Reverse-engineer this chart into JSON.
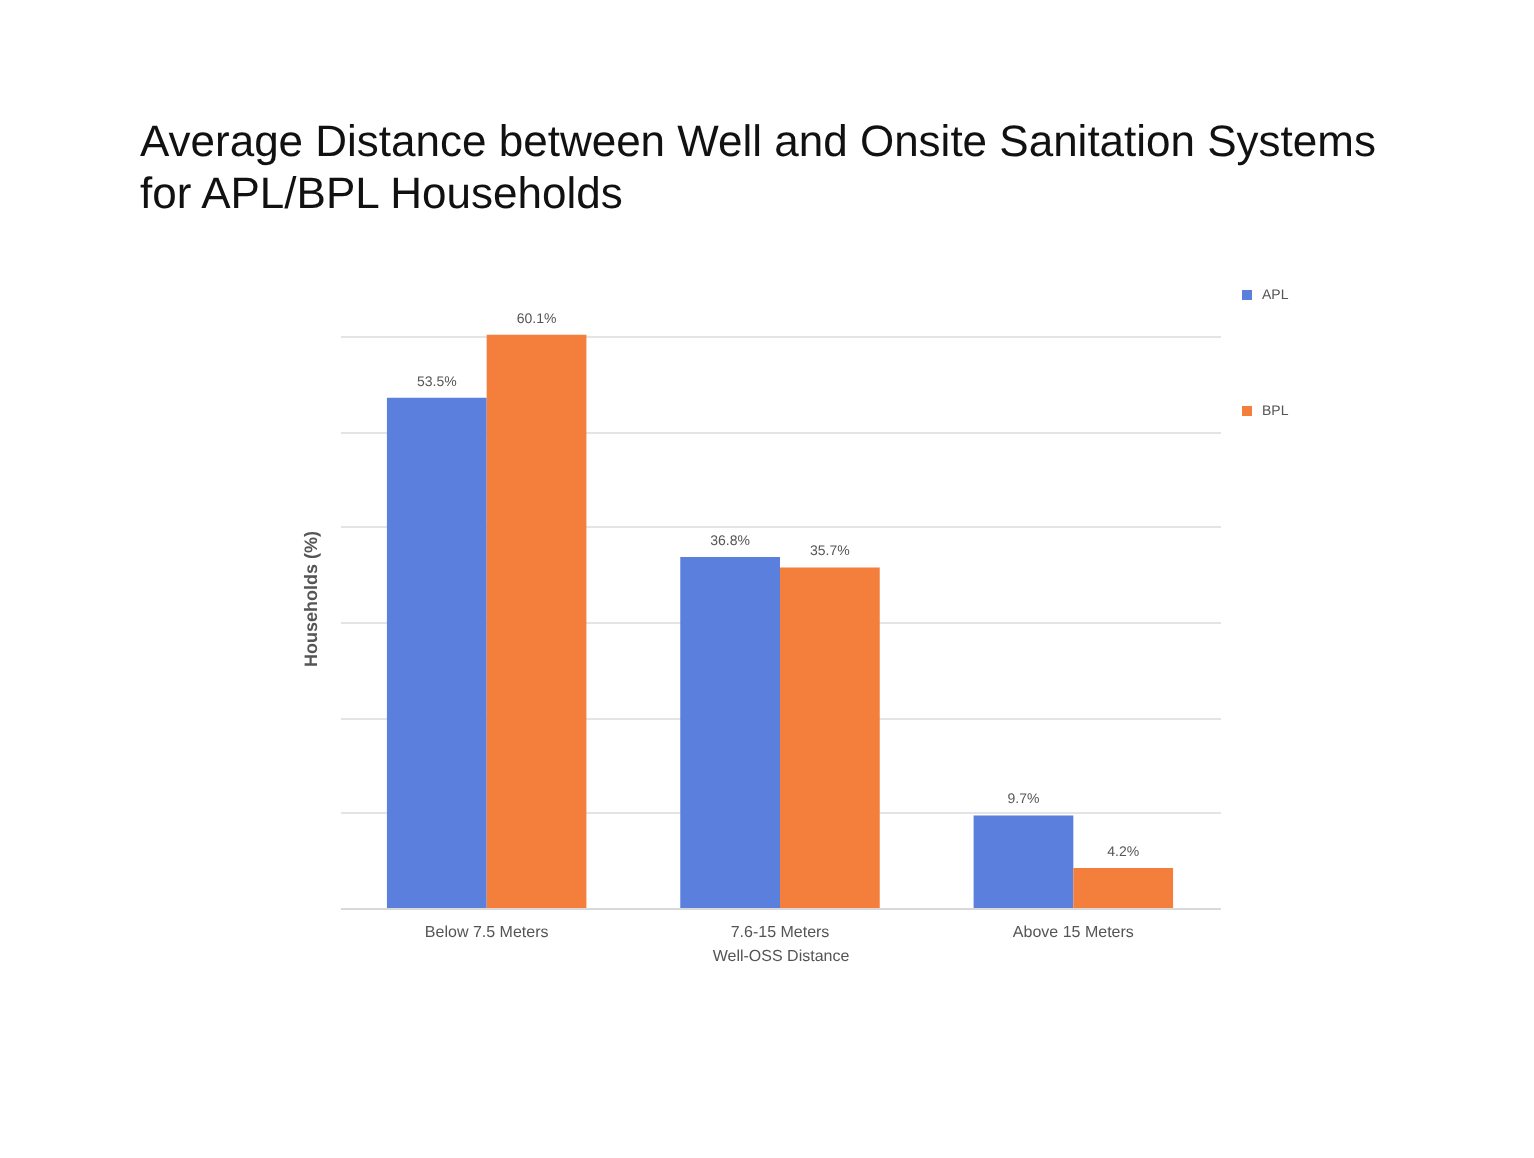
{
  "chart_data": {
    "type": "bar",
    "title": "Average Distance between Well and Onsite Sanitation Systems\nfor APL/BPL Households",
    "xlabel": "Well-OSS Distance",
    "ylabel": "Households (%)",
    "categories": [
      "Below 7.5 Meters",
      "7.6-15 Meters",
      "Above 15 Meters"
    ],
    "series": [
      {
        "name": "APL",
        "color": "#5b7fdc",
        "values": [
          53.5,
          36.8,
          9.7
        ],
        "value_labels": [
          "53.5%",
          "36.8%",
          "9.7%"
        ]
      },
      {
        "name": "BPL",
        "color": "#f47e3b",
        "values": [
          60.1,
          35.7,
          4.2
        ],
        "value_labels": [
          "60.1%",
          "35.7%",
          "4.2%"
        ]
      }
    ],
    "tick_labels": "x",
    "grid": "y",
    "legend": "right"
  }
}
